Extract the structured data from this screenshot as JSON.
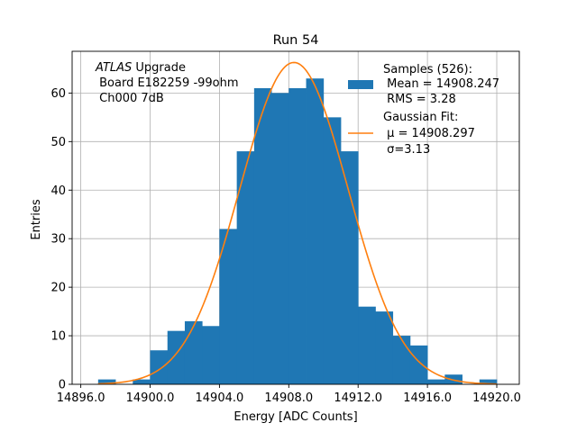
{
  "chart_data": {
    "type": "bar",
    "title": "Run 54",
    "xlabel": "Energy [ADC Counts]",
    "ylabel": "Entries",
    "xlim": [
      14895.5,
      14921.3
    ],
    "ylim": [
      0,
      68.6
    ],
    "grid": true,
    "x_ticks": [
      14896.0,
      14900.0,
      14904.0,
      14908.0,
      14912.0,
      14916.0,
      14920.0
    ],
    "x_tick_labels": [
      "14896.0",
      "14900.0",
      "14904.0",
      "14908.0",
      "14912.0",
      "14916.0",
      "14920.0"
    ],
    "y_ticks": [
      0,
      10,
      20,
      30,
      40,
      50,
      60
    ],
    "y_tick_labels": [
      "0",
      "10",
      "20",
      "30",
      "40",
      "50",
      "60"
    ],
    "annotation": {
      "italic": "ATLAS",
      "line1_rest": " Upgrade",
      "line2": " Board E182259 -99ohm",
      "line3": " Ch000 7dB"
    },
    "bins": [
      {
        "x0": 14897.0,
        "x1": 14898.0,
        "count": 1
      },
      {
        "x0": 14898.0,
        "x1": 14899.0,
        "count": 0
      },
      {
        "x0": 14899.0,
        "x1": 14900.0,
        "count": 1
      },
      {
        "x0": 14900.0,
        "x1": 14901.0,
        "count": 7
      },
      {
        "x0": 14901.0,
        "x1": 14902.0,
        "count": 11
      },
      {
        "x0": 14902.0,
        "x1": 14903.0,
        "count": 13
      },
      {
        "x0": 14903.0,
        "x1": 14904.0,
        "count": 12
      },
      {
        "x0": 14904.0,
        "x1": 14905.0,
        "count": 32
      },
      {
        "x0": 14905.0,
        "x1": 14906.0,
        "count": 48
      },
      {
        "x0": 14906.0,
        "x1": 14907.0,
        "count": 61
      },
      {
        "x0": 14907.0,
        "x1": 14908.0,
        "count": 60
      },
      {
        "x0": 14908.0,
        "x1": 14909.0,
        "count": 61
      },
      {
        "x0": 14909.0,
        "x1": 14910.0,
        "count": 63
      },
      {
        "x0": 14910.0,
        "x1": 14911.0,
        "count": 55
      },
      {
        "x0": 14911.0,
        "x1": 14912.0,
        "count": 48
      },
      {
        "x0": 14912.0,
        "x1": 14913.0,
        "count": 16
      },
      {
        "x0": 14913.0,
        "x1": 14914.0,
        "count": 15
      },
      {
        "x0": 14914.0,
        "x1": 14915.0,
        "count": 10
      },
      {
        "x0": 14915.0,
        "x1": 14916.0,
        "count": 8
      },
      {
        "x0": 14916.0,
        "x1": 14917.0,
        "count": 1
      },
      {
        "x0": 14917.0,
        "x1": 14918.0,
        "count": 2
      },
      {
        "x0": 14918.0,
        "x1": 14919.0,
        "count": 0
      },
      {
        "x0": 14919.0,
        "x1": 14920.0,
        "count": 1
      }
    ],
    "fit": {
      "mu": 14908.297,
      "sigma": 3.13,
      "amplitude": 66.3,
      "x_range": [
        14897.0,
        14920.0
      ]
    },
    "legend": {
      "placement": "top-right",
      "hist": {
        "lines": [
          "Samples (526):",
          " Mean = 14908.247",
          " RMS = 3.28"
        ]
      },
      "fit": {
        "lines": [
          "Gaussian Fit:",
          " $\\mu$ = 14908.297",
          " $\\sigma$=3.13"
        ],
        "display": [
          " μ = 14908.297",
          " σ=3.13"
        ]
      }
    },
    "colors": {
      "hist": "#1f77b4",
      "fit": "#ff7f0e",
      "grid": "#b0b0b0",
      "axes": "#000000"
    }
  }
}
